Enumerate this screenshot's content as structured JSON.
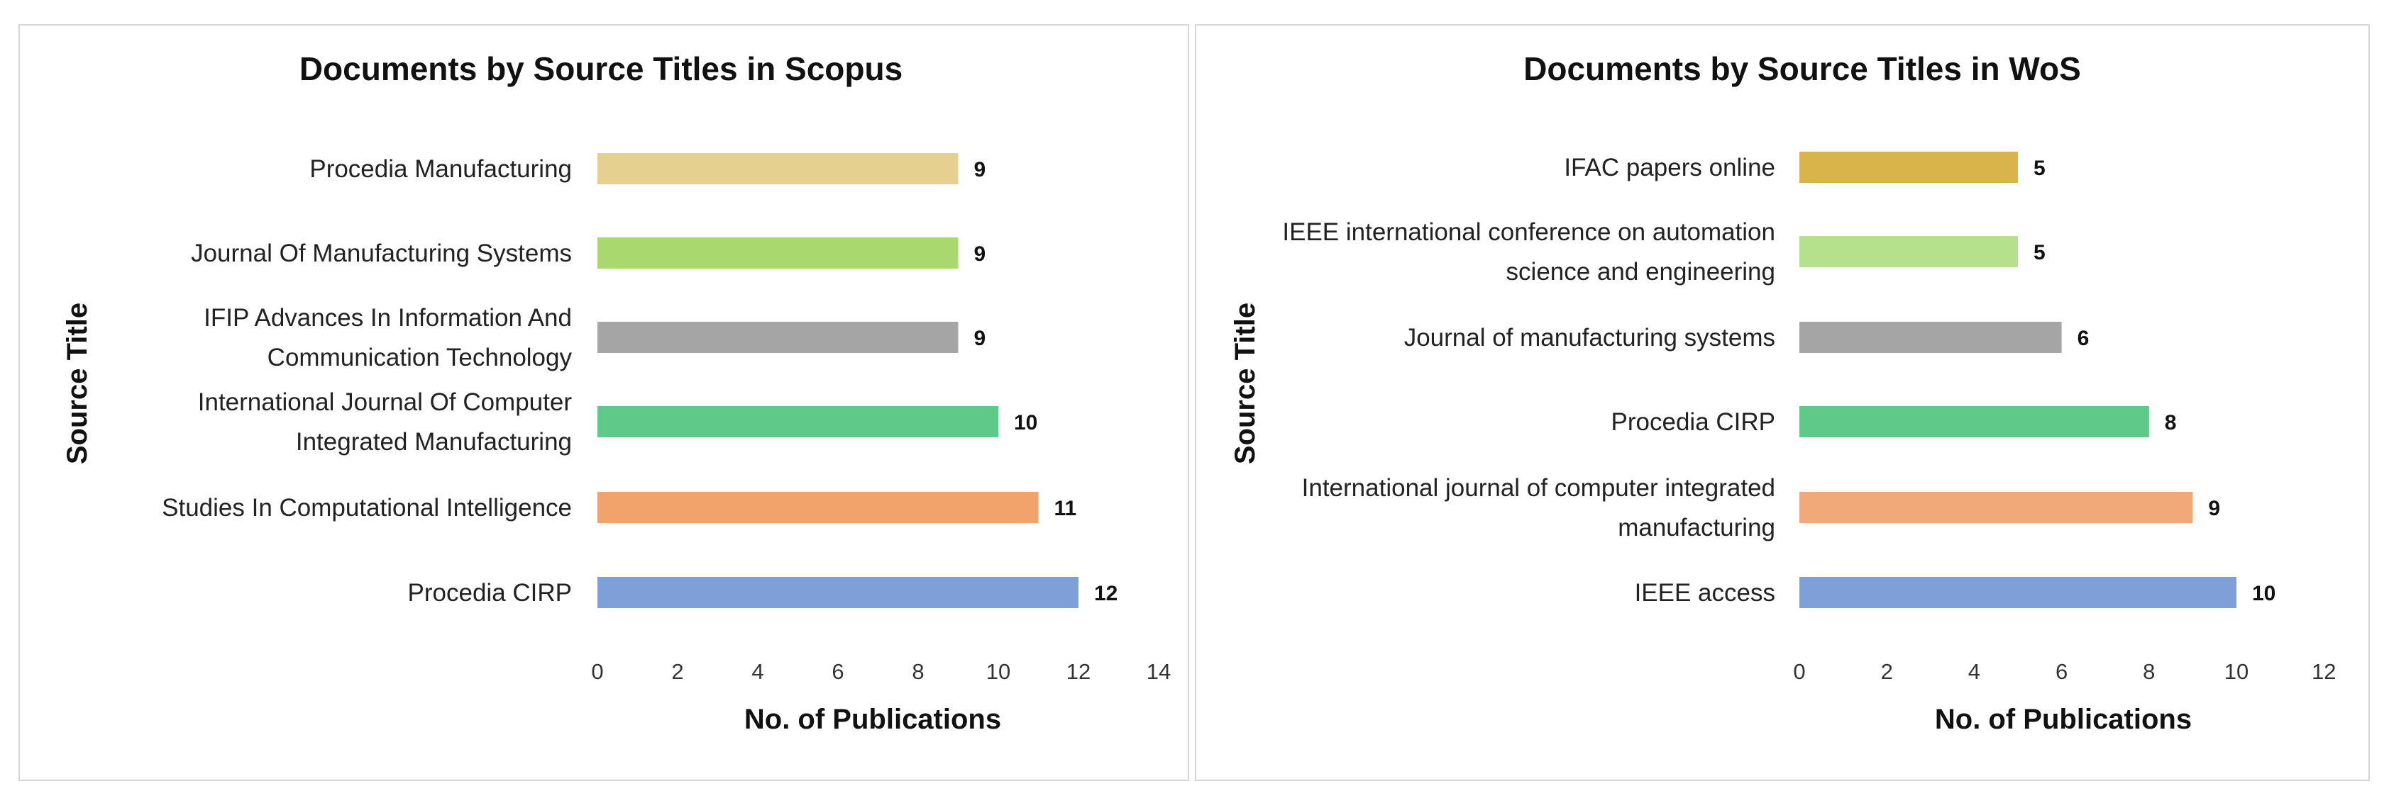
{
  "chart_data": [
    {
      "type": "bar",
      "orientation": "horizontal",
      "title": "Documents by Source Titles in Scopus",
      "xlabel": "No. of Publications",
      "ylabel": "Source Title",
      "xlim": [
        0,
        14
      ],
      "ticks": [
        "0",
        "2",
        "4",
        "6",
        "8",
        "10",
        "12",
        "14"
      ],
      "grid": false,
      "legend": "none",
      "categories": [
        [
          "Procedia Manufacturing"
        ],
        [
          "Journal Of Manufacturing Systems"
        ],
        [
          "IFIP Advances In Information And",
          "Communication Technology"
        ],
        [
          "International Journal Of Computer",
          "Integrated Manufacturing"
        ],
        [
          "Studies In Computational Intelligence"
        ],
        [
          "Procedia CIRP"
        ]
      ],
      "values": [
        9,
        9,
        9,
        10,
        11,
        12
      ],
      "value_labels": [
        "9",
        "9",
        "9",
        "10",
        "11",
        "12"
      ],
      "colors": [
        "#e6d08f",
        "#a9d86e",
        "#a5a5a5",
        "#5fc98a",
        "#f2a36b",
        "#7f9fd9"
      ]
    },
    {
      "type": "bar",
      "orientation": "horizontal",
      "title": "Documents by Source Titles in WoS",
      "xlabel": "No. of Publications",
      "ylabel": "Source Title",
      "xlim": [
        0,
        12
      ],
      "ticks": [
        "0",
        "2",
        "4",
        "6",
        "8",
        "10",
        "12"
      ],
      "grid": false,
      "legend": "none",
      "categories": [
        [
          "IFAC papers online"
        ],
        [
          "IEEE international conference on automation",
          "science and engineering"
        ],
        [
          "Journal of manufacturing systems"
        ],
        [
          "Procedia CIRP"
        ],
        [
          "International journal of computer integrated",
          "manufacturing"
        ],
        [
          "IEEE access"
        ]
      ],
      "values": [
        5,
        5,
        6,
        8,
        9,
        10
      ],
      "value_labels": [
        "5",
        "5",
        "6",
        "8",
        "9",
        "10"
      ],
      "colors": [
        "#d9b44a",
        "#b5e08c",
        "#a5a5a5",
        "#5fc98a",
        "#f2a97a",
        "#7f9fd9"
      ]
    }
  ]
}
